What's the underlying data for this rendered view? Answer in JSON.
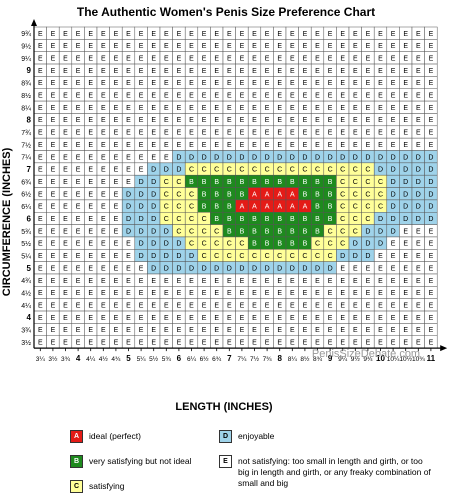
{
  "chart_data": {
    "type": "heatmap",
    "title": "The Authentic Women's Penis Size Preference Chart",
    "xlabel": "LENGTH (INCHES)",
    "ylabel": "CIRCUMFERENCE (INCHES)",
    "watermark": "PenisSizeDebate.com",
    "x_ticks": [
      "3¼",
      "3½",
      "3¾",
      "4",
      "4¼",
      "4½",
      "4¾",
      "5",
      "5¼",
      "5½",
      "5¾",
      "6",
      "6¼",
      "6½",
      "6¾",
      "7",
      "7¼",
      "7½",
      "7¾",
      "8",
      "8¼",
      "8½",
      "8¾",
      "9",
      "9¼",
      "9½",
      "9¾",
      "10",
      "10¼",
      "10½",
      "10¾",
      "11"
    ],
    "y_ticks": [
      "9¾",
      "9½",
      "9¼",
      "9",
      "8¾",
      "8½",
      "8¼",
      "8",
      "7¾",
      "7½",
      "7¼",
      "7",
      "6¾",
      "6½",
      "6¼",
      "6",
      "5¾",
      "5½",
      "5¼",
      "5",
      "4¾",
      "4½",
      "4¼",
      "4",
      "3¾",
      "3½"
    ],
    "rows": [
      "EEEEEEEEEEEEEEEEEEEEEEEEEEEEEEEE",
      "EEEEEEEEEEEEEEEEEEEEEEEEEEEEEEEE",
      "EEEEEEEEEEEEEEEEEEEEEEEEEEEEEEEE",
      "EEEEEEEEEEEEEEEEEEEEEEEEEEEEEEEE",
      "EEEEEEEEEEEEEEEEEEEEEEEEEEEEEEEE",
      "EEEEEEEEEEEEEEEEEEEEEEEEEEEEEEEE",
      "EEEEEEEEEEEEEEEEEEEEEEEEEEEEEEEE",
      "EEEEEEEEEEEEEEEEEEEEEEEEEEEEEEEE",
      "EEEEEEEEEEEEEEEEEEEEEEEEEEEEEEEE",
      "EEEEEEEEEEEEEEEEEEEEEEEEEEEEEEEE",
      "EEEEEEEEEEEDDDDDDDDDDDDDDDDDDDDD",
      "EEEEEEEEEDDDCCCCCCCCCCCCCCCDDDDD",
      "EEEEEEEEDDCCBBBBBBBBBBBBCCCCDDDD",
      "EEEEEEEDDDCCCBBBBAAAABBBCCCCDDDD",
      "EEEEEEEDDDCCCBBBAAAAAABBCCCCDDDD",
      "EEEEEEEDDDCCCCBBBBBBBBBBCCCDDDDD",
      "EEEEEEEDDDDCCCCBBBBBBBBCCCDDDEEE",
      "EEEEEEEEDDDDCCCCCBBBBBCCCDDDEEEE",
      "EEEEEEEEDDDDDCCCCCCCCCCCDDDEEEEE",
      "EEEEEEEEEDDDDDDDDDDDDDDDEEEEEEEE",
      "EEEEEEEEEEEEEEEEEEEEEEEEEEEEEEEE",
      "EEEEEEEEEEEEEEEEEEEEEEEEEEEEEEEE",
      "EEEEEEEEEEEEEEEEEEEEEEEEEEEEEEEE",
      "EEEEEEEEEEEEEEEEEEEEEEEEEEEEEEEE",
      "EEEEEEEEEEEEEEEEEEEEEEEEEEEEEEEE",
      "EEEEEEEEEEEEEEEEEEEEEEEEEEEEEEEE"
    ],
    "categories": {
      "A": {
        "label": "ideal (perfect)",
        "color": "#e41b17",
        "text": "#ffffff"
      },
      "B": {
        "label": "very satisfying but not ideal",
        "color": "#1e8a1e",
        "text": "#ffffff"
      },
      "C": {
        "label": "satisfying",
        "color": "#ffff99",
        "text": "#000000"
      },
      "D": {
        "label": "enjoyable",
        "color": "#9fd3ea",
        "text": "#000000"
      },
      "E": {
        "label": "not satisfying: too small in length and girth, or too big in length and girth, or any freaky combination of small and big",
        "color": "#ffffff",
        "text": "#000000"
      }
    }
  }
}
